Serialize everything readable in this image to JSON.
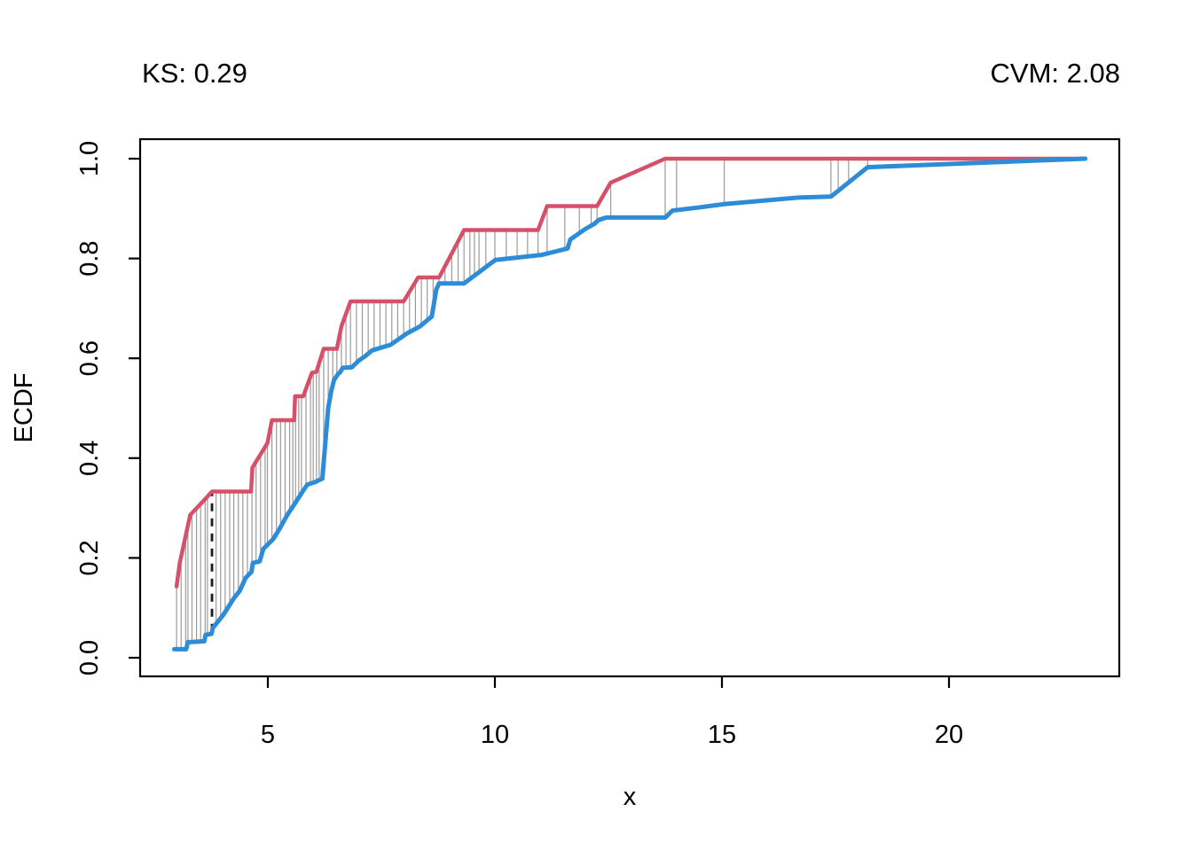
{
  "chart_data": {
    "type": "line",
    "subtype": "ecdf-comparison",
    "title_left": "KS: 0.29",
    "title_right": "CVM: 2.08",
    "stats": {
      "ks": 0.29,
      "cvm": 2.08
    },
    "xlabel": "x",
    "ylabel": "ECDF",
    "xlim": [
      2.19,
      23.75
    ],
    "ylim": [
      -0.037,
      1.039
    ],
    "x_ticks": [
      5,
      10,
      15,
      20
    ],
    "x_tick_labels": [
      "5",
      "10",
      "15",
      "20"
    ],
    "y_ticks": [
      0,
      0.2,
      0.4,
      0.6,
      0.8,
      1.0
    ],
    "y_tick_labels": [
      "0.0",
      "0.2",
      "0.4",
      "0.6",
      "0.8",
      "1.0"
    ],
    "grid": false,
    "legend_position": "none",
    "series": [
      {
        "name": "ecdf-red",
        "color": "#d6506a",
        "width": 4.5,
        "points": [
          [
            2.99,
            0.143
          ],
          [
            3.06,
            0.19
          ],
          [
            3.29,
            0.286
          ],
          [
            3.56,
            0.312
          ],
          [
            3.77,
            0.333
          ],
          [
            4.63,
            0.333
          ],
          [
            4.66,
            0.381
          ],
          [
            4.99,
            0.43
          ],
          [
            5.09,
            0.476
          ],
          [
            5.58,
            0.476
          ],
          [
            5.6,
            0.524
          ],
          [
            5.78,
            0.524
          ],
          [
            5.97,
            0.571
          ],
          [
            6.07,
            0.573
          ],
          [
            6.23,
            0.619
          ],
          [
            6.52,
            0.619
          ],
          [
            6.62,
            0.664
          ],
          [
            6.82,
            0.714
          ],
          [
            7.99,
            0.714
          ],
          [
            8.31,
            0.762
          ],
          [
            8.77,
            0.762
          ],
          [
            9.05,
            0.81
          ],
          [
            9.32,
            0.857
          ],
          [
            10.95,
            0.857
          ],
          [
            11.15,
            0.905
          ],
          [
            12.25,
            0.905
          ],
          [
            12.55,
            0.952
          ],
          [
            13.75,
            1.0
          ],
          [
            23.0,
            1.0
          ]
        ]
      },
      {
        "name": "ecdf-blue",
        "color": "#2d8cd7",
        "width": 5,
        "points": [
          [
            2.94,
            0.017
          ],
          [
            3.2,
            0.017
          ],
          [
            3.24,
            0.031
          ],
          [
            3.6,
            0.033
          ],
          [
            3.63,
            0.046
          ],
          [
            3.76,
            0.048
          ],
          [
            3.79,
            0.06
          ],
          [
            4.02,
            0.086
          ],
          [
            4.25,
            0.119
          ],
          [
            4.38,
            0.134
          ],
          [
            4.51,
            0.16
          ],
          [
            4.64,
            0.172
          ],
          [
            4.67,
            0.19
          ],
          [
            4.82,
            0.193
          ],
          [
            4.9,
            0.218
          ],
          [
            5.12,
            0.238
          ],
          [
            5.25,
            0.257
          ],
          [
            5.42,
            0.285
          ],
          [
            5.61,
            0.311
          ],
          [
            5.78,
            0.335
          ],
          [
            5.87,
            0.347
          ],
          [
            6.04,
            0.352
          ],
          [
            6.2,
            0.359
          ],
          [
            6.33,
            0.501
          ],
          [
            6.4,
            0.536
          ],
          [
            6.46,
            0.557
          ],
          [
            6.55,
            0.569
          ],
          [
            6.59,
            0.572
          ],
          [
            6.65,
            0.581
          ],
          [
            6.85,
            0.582
          ],
          [
            7.01,
            0.596
          ],
          [
            7.14,
            0.604
          ],
          [
            7.3,
            0.616
          ],
          [
            7.7,
            0.627
          ],
          [
            8.05,
            0.649
          ],
          [
            8.35,
            0.664
          ],
          [
            8.61,
            0.684
          ],
          [
            8.71,
            0.738
          ],
          [
            8.77,
            0.75
          ],
          [
            9.32,
            0.75
          ],
          [
            10.01,
            0.797
          ],
          [
            11.02,
            0.807
          ],
          [
            11.6,
            0.82
          ],
          [
            11.66,
            0.838
          ],
          [
            11.99,
            0.859
          ],
          [
            12.2,
            0.87
          ],
          [
            12.28,
            0.877
          ],
          [
            12.45,
            0.882
          ],
          [
            13.75,
            0.882
          ],
          [
            13.91,
            0.896
          ],
          [
            14.47,
            0.902
          ],
          [
            15.05,
            0.909
          ],
          [
            16.68,
            0.922
          ],
          [
            17.4,
            0.924
          ],
          [
            18.21,
            0.983
          ],
          [
            23.0,
            1.0
          ]
        ]
      }
    ],
    "connectors": {
      "color": "#9a9a9a",
      "width": 1.2,
      "x": [
        2.99,
        3.09,
        3.19,
        3.24,
        3.33,
        3.43,
        3.52,
        3.62,
        3.67,
        3.86,
        3.96,
        4.06,
        4.16,
        4.25,
        4.35,
        4.45,
        4.55,
        4.65,
        4.74,
        4.84,
        4.94,
        4.99,
        5.09,
        5.19,
        5.28,
        5.38,
        5.48,
        5.55,
        5.61,
        5.68,
        5.74,
        5.84,
        5.94,
        6.0,
        6.07,
        6.13,
        6.23,
        6.33,
        6.43,
        6.52,
        6.62,
        6.72,
        6.82,
        6.95,
        7.08,
        7.21,
        7.34,
        7.47,
        7.6,
        7.73,
        7.86,
        7.99,
        8.12,
        8.25,
        8.38,
        8.51,
        8.64,
        8.77,
        8.9,
        9.05,
        9.19,
        9.32,
        9.45,
        9.55,
        9.65,
        9.8,
        10.0,
        10.25,
        10.49,
        10.72,
        10.95,
        11.15,
        11.54,
        11.86,
        12.12,
        12.25,
        12.55,
        13.75,
        14.0,
        15.05,
        17.4,
        17.56,
        17.79,
        18.21
      ]
    },
    "ks_line": {
      "x": 3.77,
      "y_from": 0.052,
      "y_to": 0.333,
      "style": "dashed",
      "color": "#1a1a1a",
      "width": 2.8
    }
  }
}
